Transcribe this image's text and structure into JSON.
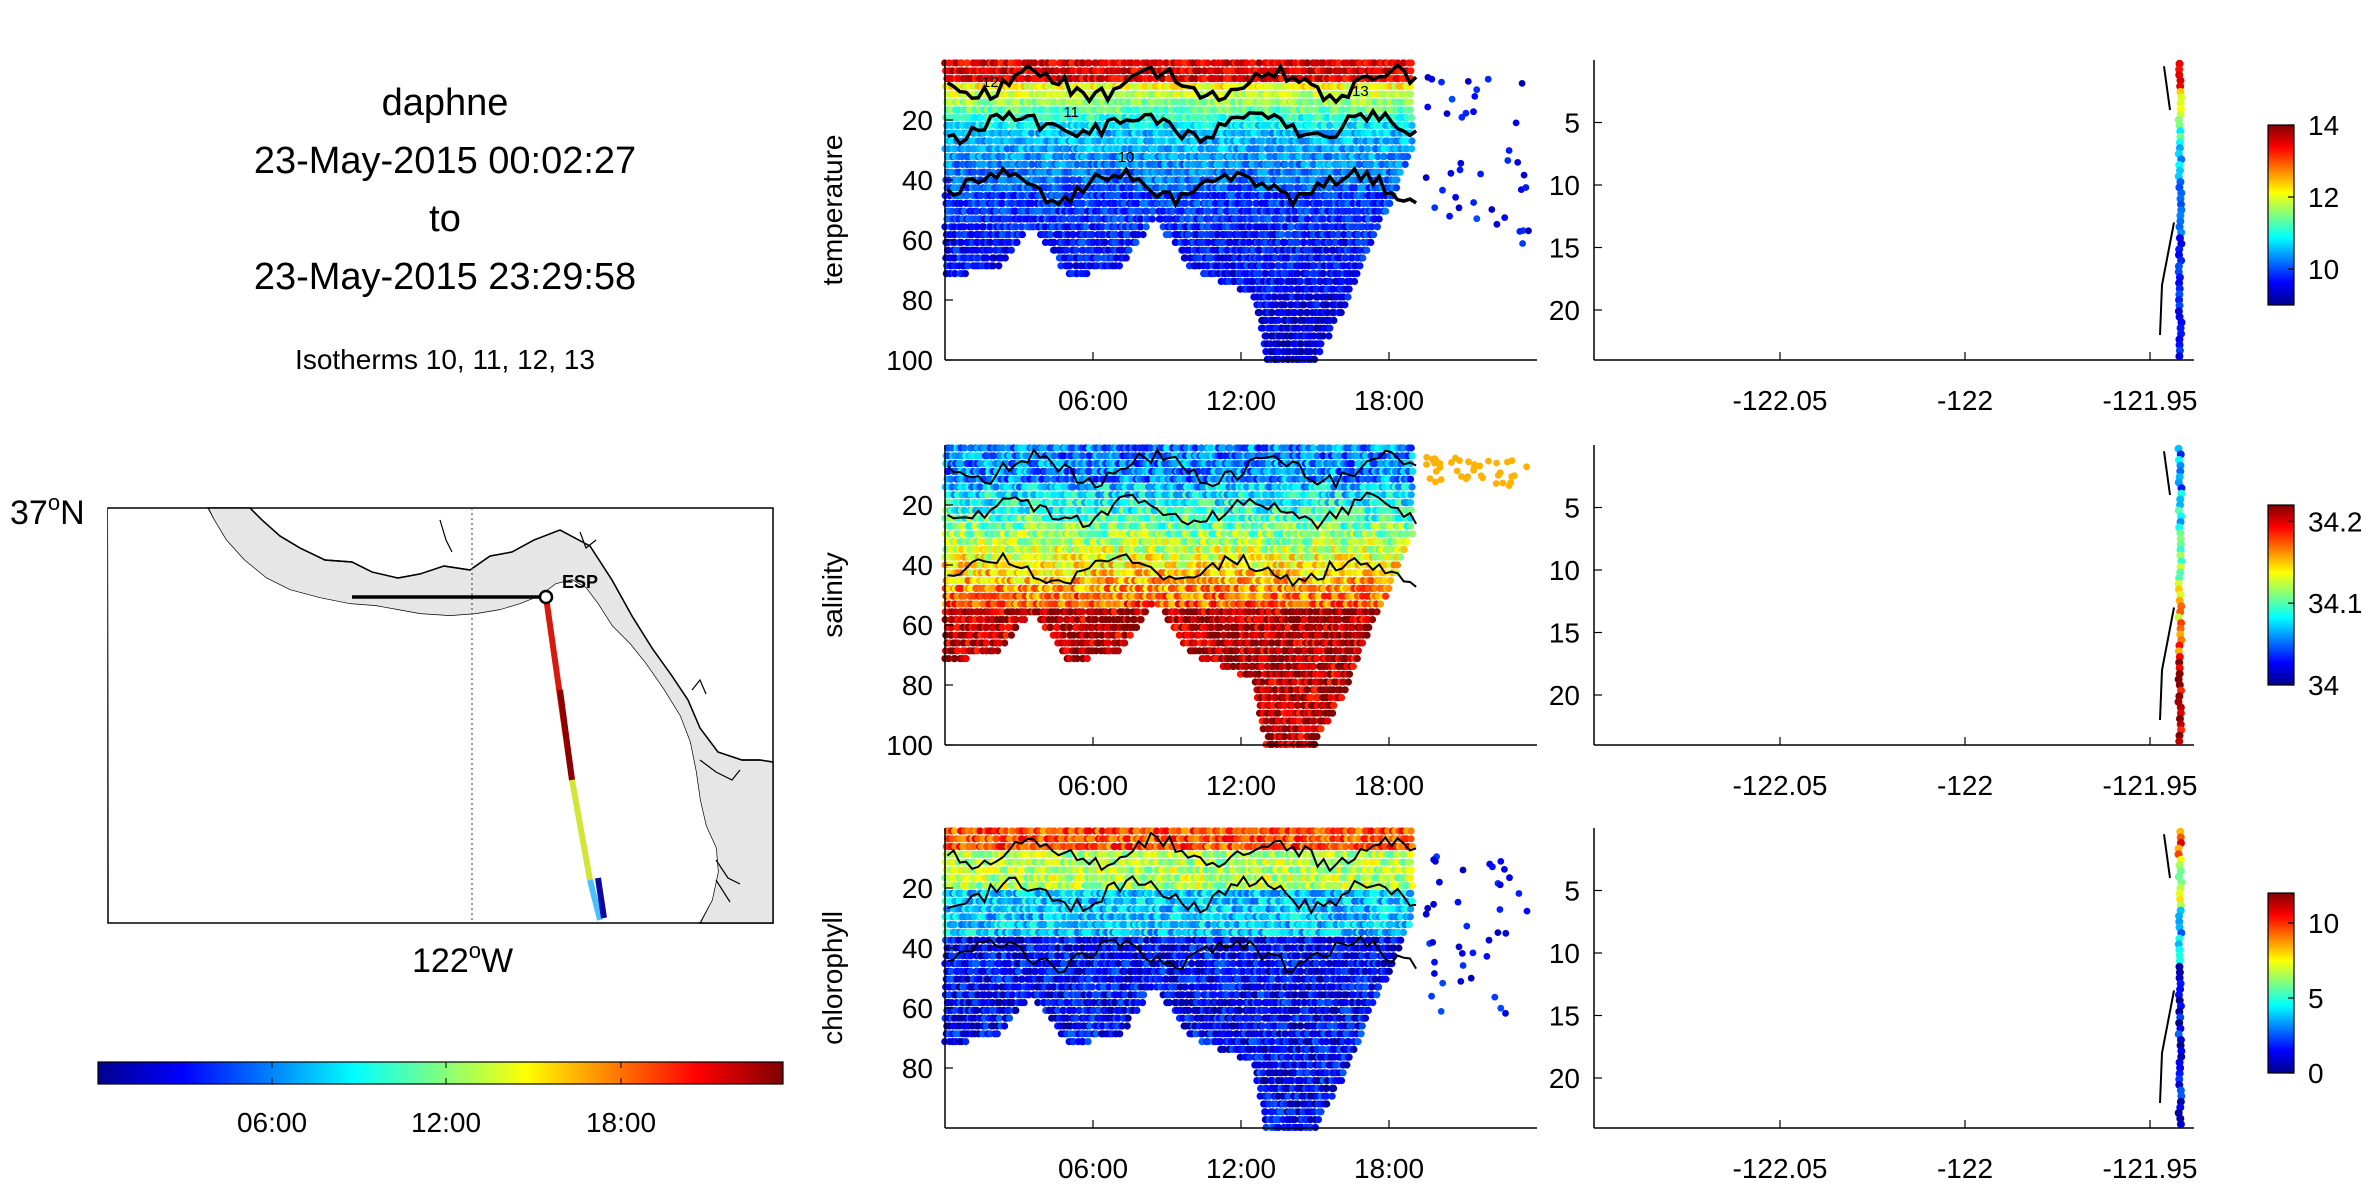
{
  "header": {
    "title": "daphne",
    "start": "23-May-2015 00:02:27",
    "to": "to",
    "end": "23-May-2015 23:29:58",
    "note": "Isotherms 10, 11, 12, 13"
  },
  "map": {
    "lat_label": "37",
    "lat_suffix": "N",
    "lon_label": "122",
    "lon_suffix": "W",
    "deg": "o",
    "station_label": "ESP",
    "land_color": "#e6e6e6"
  },
  "time_colorbar": {
    "ticks": [
      "06:00",
      "12:00",
      "18:00"
    ]
  },
  "chart_data": [
    {
      "type": "scatter",
      "variable": "temperature",
      "ylabel": "temperature",
      "x_ticks": [
        "06:00",
        "12:00",
        "18:00"
      ],
      "y_ticks": [
        20,
        40,
        60,
        80,
        100
      ],
      "ylim": [
        100,
        0
      ],
      "colorbar_ticks": [
        10,
        12,
        14
      ],
      "clim": [
        9,
        14
      ],
      "contour_labels": [
        "12",
        "11",
        "10",
        "13"
      ],
      "section_y_ticks": [
        5,
        10,
        15,
        20
      ],
      "section_x_ticks": [
        "-122.05",
        "-122",
        "-121.95"
      ],
      "max_depth_profile": [
        {
          "hour": 0.2,
          "depth": 72
        },
        {
          "hour": 2,
          "depth": 70
        },
        {
          "hour": 3.5,
          "depth": 55
        },
        {
          "hour": 5,
          "depth": 72
        },
        {
          "hour": 7,
          "depth": 70
        },
        {
          "hour": 8.5,
          "depth": 52
        },
        {
          "hour": 10,
          "depth": 70
        },
        {
          "hour": 12.5,
          "depth": 78
        },
        {
          "hour": 13,
          "depth": 100
        },
        {
          "hour": 15,
          "depth": 100
        },
        {
          "hour": 16,
          "depth": 85
        },
        {
          "hour": 18,
          "depth": 48
        },
        {
          "hour": 19,
          "depth": 28
        }
      ],
      "surface_value": 13.2,
      "deep_value": 9.3
    },
    {
      "type": "scatter",
      "variable": "salinity",
      "ylabel": "salinity",
      "x_ticks": [
        "06:00",
        "12:00",
        "18:00"
      ],
      "y_ticks": [
        20,
        40,
        60,
        80,
        100
      ],
      "ylim": [
        100,
        0
      ],
      "colorbar_ticks": [
        34,
        34.1,
        34.2
      ],
      "clim": [
        34,
        34.22
      ],
      "section_y_ticks": [
        5,
        10,
        15,
        20
      ],
      "section_x_ticks": [
        "-122.05",
        "-122",
        "-121.95"
      ],
      "max_depth_profile": [
        {
          "hour": 0.2,
          "depth": 72
        },
        {
          "hour": 2,
          "depth": 70
        },
        {
          "hour": 3.5,
          "depth": 55
        },
        {
          "hour": 5,
          "depth": 72
        },
        {
          "hour": 7,
          "depth": 70
        },
        {
          "hour": 8.5,
          "depth": 52
        },
        {
          "hour": 10,
          "depth": 70
        },
        {
          "hour": 12.5,
          "depth": 78
        },
        {
          "hour": 13,
          "depth": 100
        },
        {
          "hour": 15,
          "depth": 100
        },
        {
          "hour": 16,
          "depth": 85
        },
        {
          "hour": 18,
          "depth": 48
        },
        {
          "hour": 19,
          "depth": 28
        }
      ],
      "surface_value": 34.05,
      "deep_value": 34.22
    },
    {
      "type": "scatter",
      "variable": "chlorophyll",
      "ylabel": "chlorophyll",
      "x_ticks": [
        "06:00",
        "12:00",
        "18:00"
      ],
      "y_ticks": [
        20,
        40,
        60,
        80
      ],
      "ylim": [
        100,
        0
      ],
      "colorbar_ticks": [
        0,
        5,
        10
      ],
      "clim": [
        0,
        12
      ],
      "section_y_ticks": [
        5,
        10,
        15,
        20
      ],
      "section_x_ticks": [
        "-122.05",
        "-122",
        "-121.95"
      ],
      "max_depth_profile": [
        {
          "hour": 0.2,
          "depth": 72
        },
        {
          "hour": 2,
          "depth": 70
        },
        {
          "hour": 3.5,
          "depth": 55
        },
        {
          "hour": 5,
          "depth": 72
        },
        {
          "hour": 7,
          "depth": 70
        },
        {
          "hour": 8.5,
          "depth": 52
        },
        {
          "hour": 10,
          "depth": 70
        },
        {
          "hour": 12.5,
          "depth": 78
        },
        {
          "hour": 13,
          "depth": 100
        },
        {
          "hour": 15,
          "depth": 100
        },
        {
          "hour": 16,
          "depth": 85
        },
        {
          "hour": 18,
          "depth": 48
        },
        {
          "hour": 19,
          "depth": 28
        }
      ],
      "surface_value": 10,
      "deep_value": 0.5
    }
  ]
}
